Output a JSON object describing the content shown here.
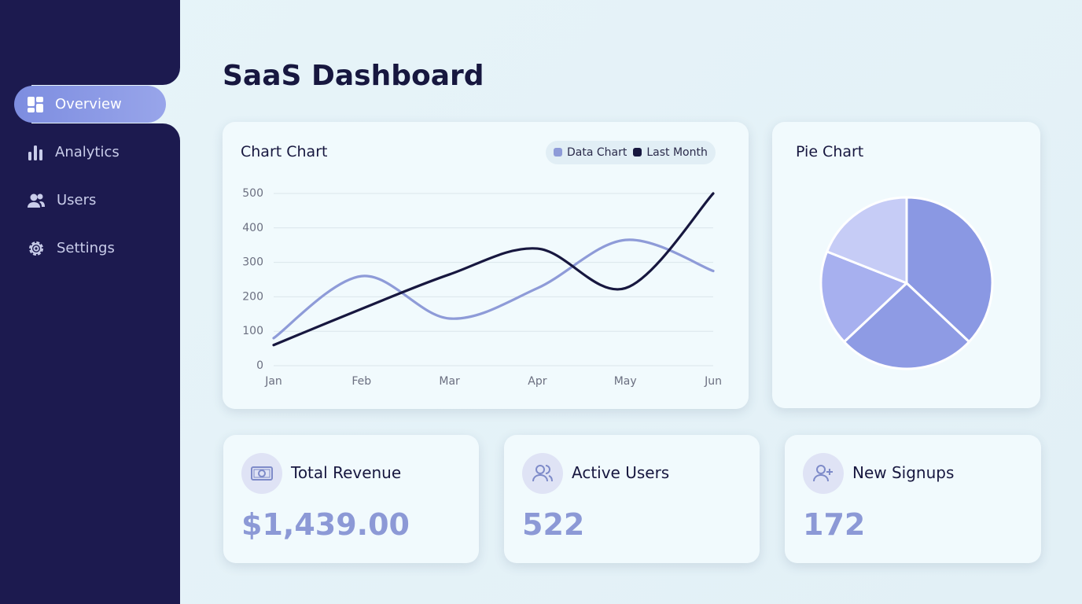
{
  "sidebar": {
    "items": [
      "Overview",
      "Analytics",
      "Users",
      "Settings"
    ]
  },
  "header": {
    "title": "SaaS Dashboard"
  },
  "chart_data": [
    {
      "type": "line",
      "title": "Chart Chart",
      "categories": [
        "Jan",
        "Feb",
        "Mar",
        "Apr",
        "May",
        "Jun"
      ],
      "series": [
        {
          "name": "Data Chart",
          "color": "#8e9bd8",
          "values": [
            80,
            260,
            137,
            225,
            365,
            275
          ]
        },
        {
          "name": "Last Month",
          "color": "#17173f",
          "values": [
            60,
            165,
            265,
            340,
            225,
            500
          ]
        }
      ],
      "ylim": [
        0,
        500
      ],
      "yticks": [
        0,
        100,
        200,
        300,
        400,
        500
      ],
      "grid": true,
      "legend": "top-right"
    },
    {
      "type": "pie",
      "title": "Pie Chart",
      "values": [
        37,
        26,
        18,
        19
      ],
      "colors": [
        "#8a98e3",
        "#8e9be4",
        "#a7b0ef",
        "#c6ccf6"
      ]
    }
  ],
  "stats": [
    {
      "label": "Total Revenue",
      "value": "$1,439.00"
    },
    {
      "label": "Active Users",
      "value": "522"
    },
    {
      "label": "New Signups",
      "value": "172"
    }
  ]
}
